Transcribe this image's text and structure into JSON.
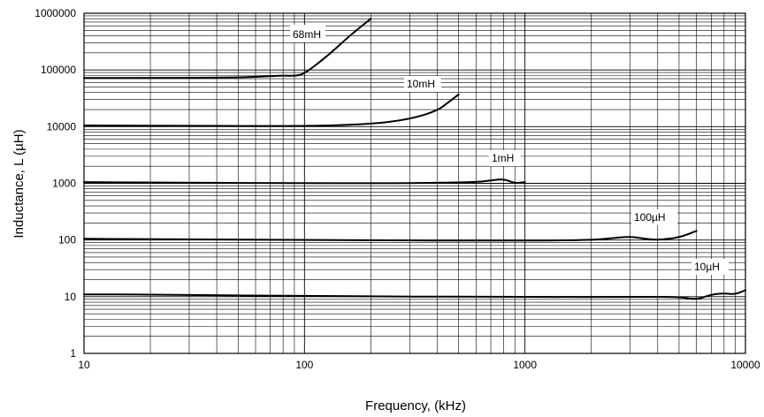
{
  "chart_data": {
    "type": "line",
    "title": "",
    "xlabel": "Frequency, (kHz)",
    "ylabel": "Inductance, L (µH)",
    "x_scale": "log",
    "y_scale": "log",
    "xlim": [
      10,
      10000
    ],
    "ylim": [
      1,
      1000000
    ],
    "x_ticks": [
      "10",
      "100",
      "1000",
      "10000"
    ],
    "y_ticks": [
      "1",
      "10",
      "100",
      "1000",
      "10000",
      "100000",
      "1000000"
    ],
    "grid": true,
    "series": [
      {
        "name": "68mH",
        "x": [
          10,
          20,
          40,
          60,
          80,
          90,
          100,
          130,
          160,
          200
        ],
        "y": [
          72000,
          72000,
          73000,
          75000,
          80000,
          78000,
          85000,
          190000,
          400000,
          800000
        ]
      },
      {
        "name": "10mH",
        "x": [
          10,
          30,
          100,
          200,
          300,
          400,
          450,
          500
        ],
        "y": [
          10500,
          10300,
          10200,
          11000,
          13500,
          19000,
          27000,
          37000
        ]
      },
      {
        "name": "1mH",
        "x": [
          10,
          30,
          100,
          300,
          600,
          700,
          800,
          900,
          1000
        ],
        "y": [
          1050,
          1020,
          1010,
          1000,
          1050,
          1120,
          1200,
          1000,
          1050
        ]
      },
      {
        "name": "100µH",
        "x": [
          10,
          30,
          100,
          1000,
          2000,
          2500,
          3000,
          3500,
          4000,
          5000,
          6000
        ],
        "y": [
          105,
          103,
          100,
          97,
          100,
          108,
          115,
          105,
          100,
          110,
          145
        ]
      },
      {
        "name": "10µH",
        "x": [
          10,
          30,
          100,
          1000,
          3000,
          5000,
          6000,
          7000,
          8000,
          9000,
          10000
        ],
        "y": [
          11,
          10.8,
          10.2,
          9.9,
          9.9,
          10,
          8.8,
          11,
          11.5,
          11,
          13
        ]
      }
    ],
    "line_color": "#000000"
  }
}
